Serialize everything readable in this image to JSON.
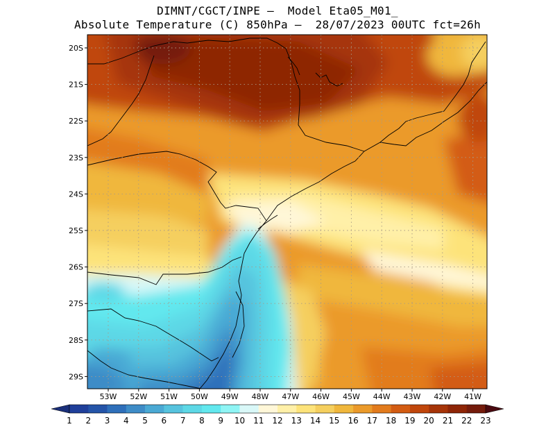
{
  "header": {
    "line1": "DIMNT/CGCT/INPE –  Model Eta05_M01_",
    "line2": "Absolute Temperature (C) 850hPa –  28/07/2023 00UTC fct=26h"
  },
  "map_data": {
    "variable": "Absolute Temperature (C)",
    "level": "850hPa",
    "lat_labels": [
      "20S",
      "21S",
      "22S",
      "23S",
      "24S",
      "25S",
      "26S",
      "27S",
      "28S",
      "29S"
    ],
    "lon_labels": [
      "53W",
      "52W",
      "51W",
      "50W",
      "49W",
      "48W",
      "47W",
      "46W",
      "45W",
      "44W",
      "43W",
      "42W",
      "41W"
    ]
  },
  "colorbar": {
    "labels": [
      "1",
      "2",
      "3",
      "4",
      "5",
      "6",
      "7",
      "8",
      "9",
      "10",
      "11",
      "12",
      "13",
      "14",
      "15",
      "16",
      "17",
      "18",
      "19",
      "20",
      "21",
      "22",
      "23"
    ],
    "colors": [
      "#1f3f9a",
      "#2454a8",
      "#2e6fba",
      "#3e8cc7",
      "#4aa9d4",
      "#56c3de",
      "#5dd8e6",
      "#62e8ee",
      "#8ff5f5",
      "#d9f8f8",
      "#fff7d8",
      "#fff0a8",
      "#fde37a",
      "#f5cf5e",
      "#f0b73c",
      "#eb9a2a",
      "#e27b1c",
      "#d35c12",
      "#c0460b",
      "#a63408",
      "#8e2506",
      "#741b0b"
    ],
    "arrow_low": "#1a2f7a",
    "arrow_high": "#4a0a10"
  }
}
